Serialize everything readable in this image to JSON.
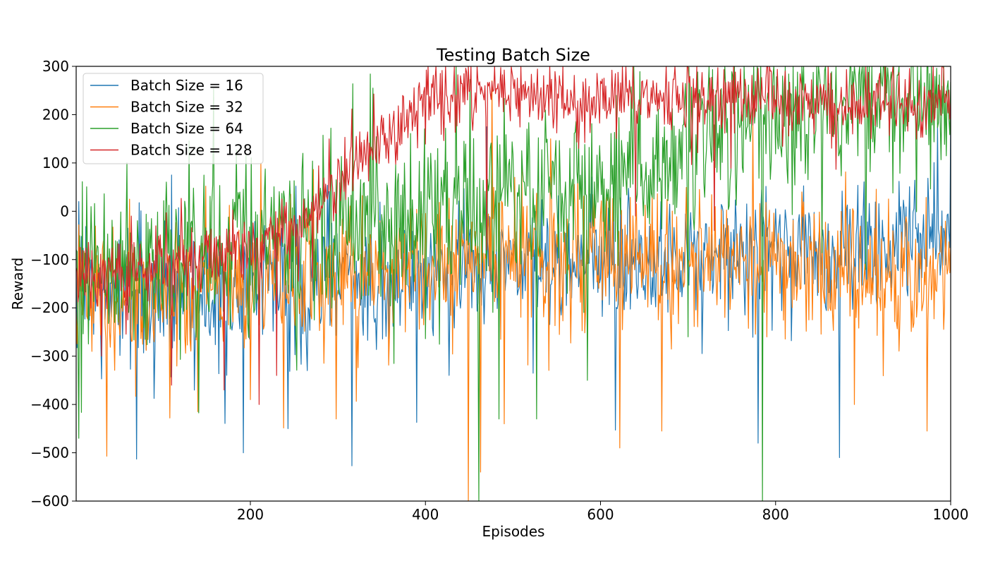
{
  "chart_data": {
    "type": "line",
    "title": "Testing Batch Size",
    "xlabel": "Episodes",
    "ylabel": "Reward",
    "xlim": [
      1,
      1000
    ],
    "ylim": [
      -600,
      300
    ],
    "xticks": [
      200,
      400,
      600,
      800,
      1000
    ],
    "yticks": [
      -600,
      -500,
      -400,
      -300,
      -200,
      -100,
      0,
      100,
      200,
      300
    ],
    "grid": false,
    "legend_position": "upper-left",
    "series": [
      {
        "name": "Batch Size = 16",
        "color": "#1f77b4",
        "keypoints": [
          [
            1,
            -150
          ],
          [
            80,
            -190
          ],
          [
            150,
            -160
          ],
          [
            250,
            -150
          ],
          [
            350,
            -150
          ],
          [
            400,
            -140
          ],
          [
            500,
            -110
          ],
          [
            600,
            -110
          ],
          [
            700,
            -100
          ],
          [
            800,
            -70
          ],
          [
            900,
            -80
          ],
          [
            1000,
            -40
          ]
        ],
        "noise": 70,
        "spikes": [
          [
            4,
            20
          ],
          [
            70,
            -513
          ],
          [
            110,
            75
          ],
          [
            192,
            -500
          ],
          [
            243,
            -450
          ],
          [
            316,
            -527
          ],
          [
            390,
            -437
          ],
          [
            470,
            175
          ],
          [
            617,
            -453
          ],
          [
            780,
            -480
          ],
          [
            873,
            -510
          ],
          [
            985,
            175
          ],
          [
            1000,
            190
          ]
        ]
      },
      {
        "name": "Batch Size = 32",
        "color": "#ff7f0e",
        "keypoints": [
          [
            1,
            -170
          ],
          [
            80,
            -180
          ],
          [
            150,
            -150
          ],
          [
            250,
            -130
          ],
          [
            350,
            -110
          ],
          [
            400,
            -110
          ],
          [
            500,
            -90
          ],
          [
            600,
            -90
          ],
          [
            700,
            -100
          ],
          [
            800,
            -110
          ],
          [
            900,
            -130
          ],
          [
            1000,
            -130
          ]
        ],
        "noise": 80,
        "spikes": [
          [
            36,
            -507
          ],
          [
            62,
            25
          ],
          [
            200,
            -390
          ],
          [
            212,
            100
          ],
          [
            298,
            -430
          ],
          [
            449,
            -600
          ],
          [
            463,
            -540
          ],
          [
            476,
            270
          ],
          [
            490,
            -440
          ],
          [
            622,
            -490
          ],
          [
            670,
            -455
          ],
          [
            830,
            40
          ],
          [
            890,
            -400
          ],
          [
            973,
            -455
          ]
        ]
      },
      {
        "name": "Batch Size = 64",
        "color": "#2ca02c",
        "keypoints": [
          [
            1,
            -140
          ],
          [
            100,
            -110
          ],
          [
            200,
            -70
          ],
          [
            300,
            -40
          ],
          [
            350,
            -30
          ],
          [
            400,
            -30
          ],
          [
            450,
            -20
          ],
          [
            500,
            40
          ],
          [
            600,
            60
          ],
          [
            700,
            130
          ],
          [
            800,
            200
          ],
          [
            900,
            215
          ],
          [
            1000,
            215
          ]
        ],
        "noise": 95,
        "spikes": [
          [
            4,
            -470
          ],
          [
            195,
            115
          ],
          [
            260,
            120
          ],
          [
            340,
            255
          ],
          [
            461,
            -600
          ],
          [
            484,
            -430
          ],
          [
            527,
            -430
          ],
          [
            585,
            -350
          ],
          [
            700,
            -260
          ],
          [
            785,
            -600
          ],
          [
            808,
            280
          ]
        ]
      },
      {
        "name": "Batch Size = 128",
        "color": "#d62728",
        "keypoints": [
          [
            1,
            -140
          ],
          [
            100,
            -110
          ],
          [
            200,
            -80
          ],
          [
            260,
            -20
          ],
          [
            290,
            40
          ],
          [
            320,
            120
          ],
          [
            380,
            180
          ],
          [
            400,
            240
          ],
          [
            500,
            240
          ],
          [
            600,
            230
          ],
          [
            700,
            235
          ],
          [
            800,
            225
          ],
          [
            900,
            225
          ],
          [
            1000,
            225
          ]
        ],
        "noise": 40,
        "spikes": [
          [
            30,
            -300
          ],
          [
            110,
            -360
          ],
          [
            170,
            -370
          ],
          [
            210,
            -400
          ],
          [
            230,
            -340
          ],
          [
            295,
            -20
          ],
          [
            470,
            -80
          ],
          [
            640,
            -10
          ],
          [
            730,
            -40
          ],
          [
            860,
            300
          ],
          [
            412,
            300
          ]
        ]
      }
    ]
  }
}
